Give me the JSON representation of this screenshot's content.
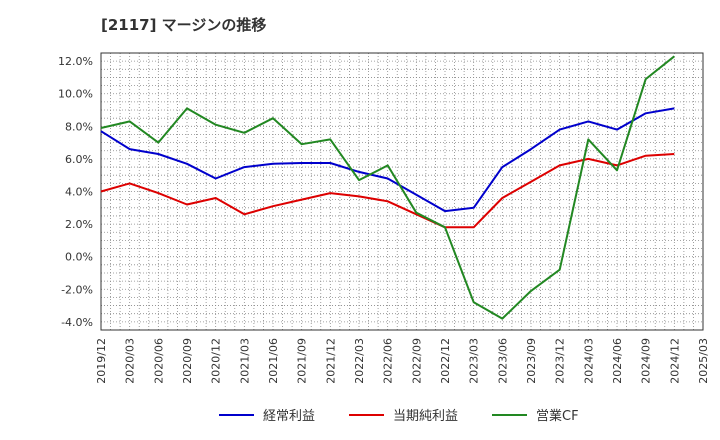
{
  "chart_data": {
    "type": "line",
    "title": "[2117]  マージンの推移",
    "xlabel": "",
    "ylabel": "",
    "ylim": [
      -4.5,
      12.5
    ],
    "yticks": [
      -4.0,
      -2.0,
      0.0,
      2.0,
      4.0,
      6.0,
      8.0,
      10.0,
      12.0
    ],
    "ytick_labels": [
      "-4.0%",
      "-2.0%",
      "0.0%",
      "2.0%",
      "4.0%",
      "6.0%",
      "8.0%",
      "10.0%",
      "12.0%"
    ],
    "x_tick_labels": [
      "2019/12",
      "2020/03",
      "2020/06",
      "2020/09",
      "2020/12",
      "2021/03",
      "2021/06",
      "2021/09",
      "2021/12",
      "2022/03",
      "2022/06",
      "2022/09",
      "2022/12",
      "2023/03",
      "2023/06",
      "2023/09",
      "2023/12",
      "2024/03",
      "2024/06",
      "2024/09",
      "2024/12",
      "2025/03"
    ],
    "x": [
      "2019/12",
      "2020/03",
      "2020/06",
      "2020/09",
      "2020/12",
      "2021/03",
      "2021/06",
      "2021/09",
      "2021/12",
      "2022/03",
      "2022/06",
      "2022/09",
      "2022/12",
      "2023/03",
      "2023/06",
      "2023/09",
      "2023/12",
      "2024/03",
      "2024/06",
      "2024/09",
      "2024/12"
    ],
    "grid": true,
    "legend_position": "bottom",
    "series": [
      {
        "name": "経常利益",
        "color": "#0000cc",
        "values": [
          7.7,
          6.6,
          6.3,
          5.7,
          4.8,
          5.5,
          5.7,
          5.75,
          5.75,
          5.2,
          4.8,
          3.8,
          2.8,
          3.0,
          5.5,
          6.6,
          7.8,
          8.3,
          7.8,
          8.8,
          9.1
        ]
      },
      {
        "name": "当期純利益",
        "color": "#dd0000",
        "values": [
          4.0,
          4.5,
          3.9,
          3.2,
          3.6,
          2.6,
          3.1,
          3.5,
          3.9,
          3.7,
          3.4,
          2.6,
          1.8,
          1.8,
          3.6,
          4.6,
          5.6,
          6.0,
          5.6,
          6.2,
          6.3
        ]
      },
      {
        "name": "営業CF",
        "color": "#228822",
        "values": [
          7.9,
          8.3,
          7.0,
          9.1,
          8.1,
          7.6,
          8.5,
          6.9,
          7.2,
          4.7,
          5.6,
          2.7,
          1.8,
          -2.8,
          -3.8,
          -2.1,
          -0.8,
          7.2,
          5.3,
          10.9,
          12.3
        ]
      }
    ]
  }
}
